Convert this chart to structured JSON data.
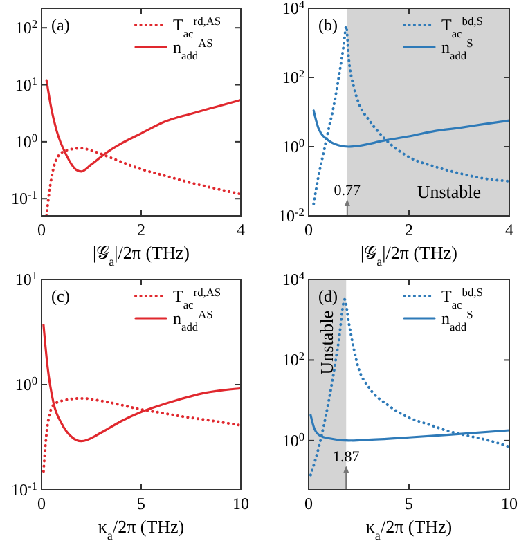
{
  "chart_data": [
    {
      "type": "line",
      "xlabel": "|𝒢$_{a}$|/2π (THz)",
      "xlim": [
        0,
        4
      ],
      "xticks": [
        0,
        2,
        4
      ],
      "ylim": [
        0.05,
        220
      ],
      "log": "y",
      "yticks": [
        {
          "value": 0.1,
          "label": "10$^{-1}$"
        },
        {
          "value": 1,
          "label": "10$^{0}$"
        },
        {
          "value": 10,
          "label": "10$^{1}$"
        },
        {
          "value": 100,
          "label": "10$^{2}$"
        }
      ],
      "legend": "top right",
      "annotations": [
        "(a)"
      ],
      "series": [
        {
          "name": "T$_{ac}$$^{rd,AS}$",
          "color": "#e0282e",
          "line_style": "dotted",
          "x": [
            0.1,
            0.15,
            0.25,
            0.4,
            0.6,
            0.8,
            1.0,
            1.5,
            2.0,
            2.5,
            3.0,
            3.5,
            4.0
          ],
          "values": [
            0.05,
            0.12,
            0.37,
            0.64,
            0.74,
            0.77,
            0.7,
            0.48,
            0.33,
            0.25,
            0.19,
            0.15,
            0.12
          ]
        },
        {
          "name": "n$_{add}$$^{AS}$",
          "color": "#e0282e",
          "line_style": "solid",
          "x": [
            0.1,
            0.2,
            0.3,
            0.5,
            0.7,
            0.8,
            1.0,
            1.3,
            1.6,
            2.0,
            2.5,
            3.0,
            3.5,
            4.0
          ],
          "values": [
            12,
            3.7,
            1.6,
            0.58,
            0.32,
            0.3,
            0.4,
            0.64,
            0.93,
            1.4,
            2.3,
            3.1,
            4.1,
            5.4
          ]
        }
      ]
    },
    {
      "type": "line",
      "xlabel": "|𝒢$_{a}$|/2π (THz)",
      "xlim": [
        0,
        4
      ],
      "xticks": [
        0,
        2,
        4
      ],
      "ylim": [
        0.01,
        10000
      ],
      "log": "y",
      "yticks": [
        {
          "value": 0.01,
          "label": "10$^{-2}$"
        },
        {
          "value": 1,
          "label": "10$^{0}$"
        },
        {
          "value": 100,
          "label": "10$^{2}$"
        },
        {
          "value": 10000,
          "label": "10$^{4}$"
        }
      ],
      "legend": "top right",
      "annotations": [
        "(b)",
        {
          "text": "0.77",
          "x": 0.77,
          "y": 0.04
        }
      ],
      "bands": [
        {
          "axis": "x",
          "from": 0.77,
          "to": 4,
          "label": "Unstable",
          "color": "#d4d4d4"
        }
      ],
      "series": [
        {
          "name": "T$_{ac}$$^{bd,S}$",
          "color": "#2e7ab8",
          "line_style": "dotted",
          "x": [
            0.1,
            0.2,
            0.3,
            0.4,
            0.5,
            0.6,
            0.7,
            0.75,
            0.8,
            0.9,
            1.0,
            1.2,
            1.5,
            2.0,
            2.5,
            3.0,
            3.5,
            4.0
          ],
          "values": [
            0.022,
            0.15,
            0.69,
            3.3,
            15,
            100,
            880,
            3000,
            350,
            54,
            18,
            6,
            1.8,
            0.5,
            0.27,
            0.17,
            0.12,
            0.1
          ]
        },
        {
          "name": "n$_{add}$$^{S}$",
          "color": "#2e7ab8",
          "line_style": "solid",
          "x": [
            0.1,
            0.2,
            0.4,
            0.6,
            0.8,
            1.0,
            1.5,
            2.0,
            2.5,
            3.0,
            3.5,
            4.0
          ],
          "values": [
            11,
            3.3,
            1.5,
            1.1,
            1.0,
            1.06,
            1.5,
            2.0,
            2.8,
            3.5,
            4.5,
            5.7
          ]
        }
      ]
    },
    {
      "type": "line",
      "xlabel": "κ$_{a}$/2π (THz)",
      "xlim": [
        0,
        10
      ],
      "xticks": [
        0,
        5,
        10
      ],
      "ylim": [
        0.1,
        10
      ],
      "log": "y",
      "yticks": [
        {
          "value": 0.1,
          "label": "10$^{-1}$"
        },
        {
          "value": 1,
          "label": "10$^{0}$"
        },
        {
          "value": 10,
          "label": "10$^{1}$"
        }
      ],
      "legend": "top right",
      "annotations": [
        "(c)"
      ],
      "series": [
        {
          "name": "T$_{ac}$$^{rd,AS}$",
          "color": "#e0282e",
          "line_style": "dotted",
          "x": [
            0.1,
            0.3,
            0.6,
            1,
            2,
            3,
            4,
            5,
            6,
            7,
            8,
            9,
            10
          ],
          "values": [
            0.15,
            0.41,
            0.64,
            0.7,
            0.74,
            0.7,
            0.64,
            0.58,
            0.54,
            0.5,
            0.47,
            0.44,
            0.41
          ]
        },
        {
          "name": "n$_{add}$$^{AS}$",
          "color": "#e0282e",
          "line_style": "solid",
          "x": [
            0.1,
            0.3,
            0.6,
            1,
            1.5,
            2,
            3,
            4,
            5,
            6,
            7,
            8,
            9,
            10
          ],
          "values": [
            3.7,
            1.5,
            0.67,
            0.43,
            0.32,
            0.29,
            0.35,
            0.45,
            0.55,
            0.64,
            0.73,
            0.82,
            0.88,
            0.92
          ]
        }
      ]
    },
    {
      "type": "line",
      "xlabel": "κ$_{a}$/2π (THz)",
      "xlim": [
        0,
        10
      ],
      "xticks": [
        0,
        5,
        10
      ],
      "ylim": [
        0.06,
        10000
      ],
      "log": "y",
      "yticks": [
        {
          "value": 1,
          "label": "10$^{0}$"
        },
        {
          "value": 100,
          "label": "10$^{2}$"
        },
        {
          "value": 10000,
          "label": "10$^{4}$"
        }
      ],
      "legend": "top right",
      "annotations": [
        "(d)",
        {
          "text": "1.87",
          "x": 1.87,
          "y": 0.3
        }
      ],
      "bands": [
        {
          "axis": "x",
          "from": 0,
          "to": 1.87,
          "label": "Unstable",
          "color": "#d4d4d4"
        }
      ],
      "series": [
        {
          "name": "T$_{ac}$$^{bd,S}$",
          "color": "#2e7ab8",
          "line_style": "dotted",
          "x": [
            0.1,
            0.5,
            1,
            1.5,
            1.8,
            2,
            2.5,
            3,
            4,
            5,
            6,
            7,
            8,
            9,
            10
          ],
          "values": [
            0.14,
            0.67,
            9.5,
            300,
            3200,
            850,
            60,
            21,
            7.3,
            3.7,
            2.5,
            1.7,
            1.3,
            1.0,
            0.7
          ]
        },
        {
          "name": "n$_{add}$$^{S}$",
          "color": "#2e7ab8",
          "line_style": "solid",
          "x": [
            0.1,
            0.3,
            0.6,
            1,
            2,
            3,
            5,
            7,
            10
          ],
          "values": [
            4.3,
            1.9,
            1.3,
            1.14,
            1.0,
            1.05,
            1.2,
            1.4,
            1.8
          ]
        }
      ]
    }
  ]
}
